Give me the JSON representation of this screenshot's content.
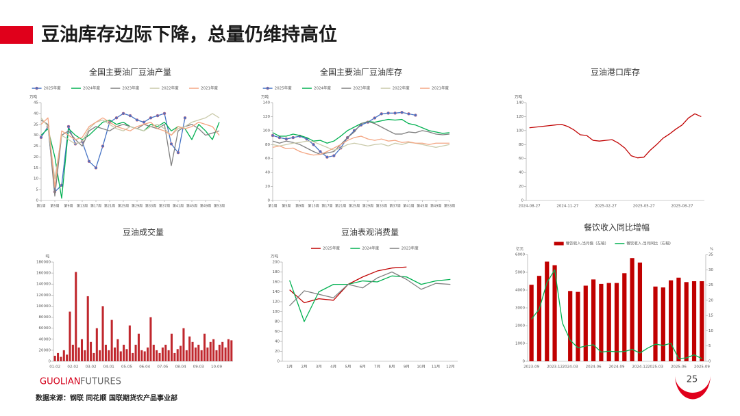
{
  "header": {
    "title": "豆油库存边际下降，总量仍维持高位"
  },
  "footer": {
    "brand": "GUOLIAN",
    "brand2": "FUTURES",
    "source": "数据来源：钢联  同花顺  国联期货农产品事业部",
    "page": 25
  },
  "chart_data": [
    {
      "type": "line",
      "title": "全国主要油厂豆油产量",
      "y_label": "万吨",
      "x": [
        1,
        3,
        5,
        7,
        9,
        11,
        13,
        15,
        17,
        19,
        21,
        23,
        25,
        27,
        29,
        31,
        33,
        35,
        37,
        39,
        41,
        43,
        45,
        47,
        49,
        51,
        53
      ],
      "xlim": [
        1,
        53
      ],
      "xticks": [
        {
          "value": 1,
          "label": "第1周"
        },
        {
          "value": 5,
          "label": "第5周"
        },
        {
          "value": 9,
          "label": "第9周"
        },
        {
          "value": 13,
          "label": "第13周"
        },
        {
          "value": 17,
          "label": "第17周"
        },
        {
          "value": 21,
          "label": "第21周"
        },
        {
          "value": 25,
          "label": "第25周"
        },
        {
          "value": 29,
          "label": "第29周"
        },
        {
          "value": 33,
          "label": "第33周"
        },
        {
          "value": 37,
          "label": "第37周"
        },
        {
          "value": 41,
          "label": "第41周"
        },
        {
          "value": 45,
          "label": "第45周"
        },
        {
          "value": 49,
          "label": "第49周"
        },
        {
          "value": 53,
          "label": "第53周"
        }
      ],
      "ylim": [
        0,
        45
      ],
      "yticks": [
        0,
        5,
        10,
        15,
        20,
        25,
        30,
        35,
        40,
        45
      ],
      "series": [
        {
          "name": "2025年度",
          "color": "#4472c4",
          "marker": true,
          "values": [
            29,
            34,
            4,
            7,
            34,
            26,
            27,
            18,
            15,
            25,
            36,
            38,
            40,
            39,
            37,
            36,
            38,
            39,
            40,
            26,
            22,
            38,
            null,
            null,
            null,
            null,
            null
          ]
        },
        {
          "name": "2024年度",
          "color": "#00b050",
          "values": [
            30,
            33,
            20,
            1,
            33,
            30,
            28,
            30,
            33,
            36,
            37,
            35,
            36,
            34,
            33,
            32,
            35,
            34,
            36,
            32,
            34,
            33,
            28,
            35,
            32,
            28,
            36
          ]
        },
        {
          "name": "2023年度",
          "color": "#7f7f7f",
          "values": [
            37,
            35,
            2,
            30,
            32,
            28,
            25,
            32,
            34,
            33,
            32,
            34,
            35,
            34,
            33,
            35,
            34,
            33,
            35,
            16,
            32,
            34,
            35,
            33,
            30,
            31,
            32
          ]
        },
        {
          "name": "2022年度",
          "color": "#c9c9a9",
          "values": [
            38,
            34,
            10,
            30,
            28,
            26,
            27,
            33,
            36,
            37,
            35,
            33,
            32,
            34,
            33,
            32,
            34,
            35,
            33,
            30,
            33,
            34,
            36,
            37,
            38,
            40,
            38
          ]
        },
        {
          "name": "2021年度",
          "color": "#f4a582",
          "values": [
            35,
            38,
            6,
            32,
            30,
            28,
            29,
            34,
            36,
            38,
            36,
            34,
            33,
            32,
            34,
            35,
            36,
            33,
            32,
            30,
            34,
            33,
            34,
            36,
            35,
            34,
            30
          ]
        }
      ]
    },
    {
      "type": "line",
      "title": "全国主要油厂豆油库存",
      "y_label": "万吨",
      "x": [
        1,
        3,
        5,
        7,
        9,
        11,
        13,
        15,
        17,
        19,
        21,
        23,
        25,
        27,
        29,
        31,
        33,
        35,
        37,
        39,
        41,
        43,
        45,
        47,
        49,
        51,
        53
      ],
      "xlim": [
        1,
        53
      ],
      "xticks": [
        {
          "value": 1,
          "label": "第1周"
        },
        {
          "value": 5,
          "label": "第5周"
        },
        {
          "value": 9,
          "label": "第9周"
        },
        {
          "value": 13,
          "label": "第13周"
        },
        {
          "value": 17,
          "label": "第17周"
        },
        {
          "value": 21,
          "label": "第21周"
        },
        {
          "value": 25,
          "label": "第25周"
        },
        {
          "value": 29,
          "label": "第29周"
        },
        {
          "value": 33,
          "label": "第33周"
        },
        {
          "value": 37,
          "label": "第37周"
        },
        {
          "value": 41,
          "label": "第41周"
        },
        {
          "value": 45,
          "label": "第45周"
        },
        {
          "value": 49,
          "label": "第49周"
        },
        {
          "value": 53,
          "label": "第53周"
        }
      ],
      "ylim": [
        0,
        140
      ],
      "yticks": [
        0,
        20,
        40,
        60,
        80,
        100,
        120,
        140
      ],
      "series": [
        {
          "name": "2025年度",
          "color": "#4472c4",
          "marker": true,
          "values": [
            93,
            90,
            88,
            90,
            92,
            88,
            80,
            70,
            62,
            64,
            75,
            90,
            100,
            108,
            112,
            118,
            124,
            125,
            125,
            126,
            124,
            122,
            null,
            null,
            null,
            null,
            null
          ]
        },
        {
          "name": "2024年度",
          "color": "#00b050",
          "values": [
            97,
            92,
            92,
            95,
            93,
            90,
            85,
            86,
            82,
            85,
            92,
            100,
            105,
            110,
            113,
            112,
            114,
            116,
            115,
            116,
            110,
            108,
            104,
            100,
            98,
            96,
            97
          ]
        },
        {
          "name": "2023年度",
          "color": "#7f7f7f",
          "values": [
            85,
            82,
            85,
            83,
            80,
            75,
            70,
            66,
            68,
            70,
            80,
            90,
            98,
            110,
            113,
            110,
            105,
            100,
            95,
            95,
            98,
            97,
            100,
            98,
            95,
            94,
            95
          ]
        },
        {
          "name": "2022年度",
          "color": "#c9c9a9",
          "values": [
            80,
            78,
            80,
            82,
            83,
            85,
            84,
            80,
            76,
            72,
            75,
            80,
            82,
            80,
            78,
            80,
            81,
            78,
            82,
            80,
            83,
            82,
            80,
            78,
            76,
            78,
            80
          ]
        },
        {
          "name": "2021年度",
          "color": "#f4a582",
          "values": [
            76,
            78,
            74,
            75,
            70,
            67,
            65,
            66,
            70,
            75,
            80,
            86,
            90,
            92,
            88,
            86,
            88,
            85,
            86,
            83,
            84,
            82,
            82,
            80,
            82,
            82,
            82
          ]
        }
      ]
    },
    {
      "type": "line",
      "title": "豆油港口库存",
      "y_label": "万吨",
      "categories": [
        "2024-08-27",
        null,
        null,
        null,
        null,
        null,
        "2024-11-27",
        null,
        null,
        null,
        null,
        null,
        "2025-02-27",
        null,
        null,
        null,
        null,
        null,
        "2025-05-27",
        null,
        null,
        null,
        null,
        null,
        "2025-08-27",
        null,
        null,
        null
      ],
      "ylim": [
        0,
        140
      ],
      "yticks": [
        0,
        20,
        40,
        60,
        80,
        100,
        120,
        140
      ],
      "series": [
        {
          "color": "#c00000",
          "values": [
            104,
            105,
            106,
            107,
            108,
            109,
            106,
            101,
            94,
            93,
            86,
            85,
            86,
            87,
            82,
            75,
            64,
            61,
            62,
            72,
            80,
            89,
            95,
            102,
            108,
            118,
            124,
            120
          ]
        }
      ]
    },
    {
      "type": "bar",
      "title": "豆油成交量",
      "y_label": "吨",
      "color": "#c0272d",
      "categories": [
        "01-02",
        null,
        null,
        null,
        null,
        null,
        "02-02",
        null,
        null,
        null,
        null,
        null,
        "03-02",
        null,
        null,
        null,
        null,
        null,
        "04-01",
        null,
        null,
        null,
        null,
        null,
        "05-05",
        null,
        null,
        null,
        null,
        null,
        "06-04",
        null,
        null,
        null,
        null,
        null,
        "07-05",
        null,
        null,
        null,
        null,
        null,
        "08-04",
        null,
        null,
        null,
        null,
        null,
        "09-03",
        null,
        null,
        null,
        null,
        null,
        "10-09",
        null,
        null,
        null,
        null,
        null
      ],
      "values": [
        10000,
        15000,
        8000,
        20000,
        12000,
        90000,
        30000,
        162000,
        25000,
        40000,
        20000,
        118000,
        35000,
        15000,
        60000,
        20000,
        100000,
        30000,
        20000,
        75000,
        25000,
        40000,
        18000,
        30000,
        22000,
        65000,
        15000,
        30000,
        50000,
        20000,
        18000,
        25000,
        80000,
        30000,
        20000,
        15000,
        25000,
        30000,
        20000,
        50000,
        15000,
        22000,
        28000,
        60000,
        20000,
        45000,
        35000,
        25000,
        30000,
        20000,
        50000,
        25000,
        35000,
        40000,
        20000,
        30000,
        35000,
        25000,
        40000,
        38000
      ],
      "ylim": [
        0,
        180000
      ],
      "yticks": [
        0,
        20000,
        40000,
        60000,
        80000,
        100000,
        120000,
        140000,
        160000,
        180000
      ]
    },
    {
      "type": "line",
      "title": "豆油表观消费量",
      "y_label": "万吨",
      "categories": [
        "1月",
        "2月",
        "3月",
        "4月",
        "5月",
        "6月",
        "7月",
        "8月",
        "9月",
        "10月",
        "11月",
        "12月"
      ],
      "ylim": [
        0,
        200
      ],
      "yticks": [
        0,
        20,
        40,
        60,
        80,
        100,
        120,
        140,
        160,
        180,
        200
      ],
      "series": [
        {
          "name": "2025年度",
          "color": "#c00000",
          "values": [
            144,
            118,
            126,
            123,
            155,
            170,
            182,
            188,
            190,
            null,
            null,
            null
          ]
        },
        {
          "name": "2024年度",
          "color": "#00b050",
          "values": [
            163,
            80,
            140,
            155,
            155,
            162,
            160,
            172,
            170,
            155,
            162,
            165
          ]
        },
        {
          "name": "2023年度",
          "color": "#7f7f7f",
          "values": [
            112,
            142,
            135,
            128,
            155,
            148,
            168,
            180,
            165,
            145,
            157,
            155
          ]
        }
      ]
    },
    {
      "type": "combo",
      "title": "餐饮收入同比增幅",
      "y_label": "亿元",
      "y2_label": "%",
      "categories": [
        "2023-09",
        null,
        null,
        "2023-12",
        null,
        "2024-03",
        null,
        null,
        "2024-06",
        null,
        null,
        "2024-09",
        null,
        null,
        "2024-12",
        null,
        "2025-03",
        null,
        null,
        "2025-06",
        null,
        null,
        "2025-09"
      ],
      "ylim": [
        0,
        6000
      ],
      "yticks": [
        0,
        1000,
        2000,
        3000,
        4000,
        5000,
        6000
      ],
      "y2lim": [
        0,
        35
      ],
      "y2ticks": [
        0,
        5,
        10,
        15,
        20,
        25,
        30,
        35
      ],
      "series": [
        {
          "name": "餐饮收入:当月值（左轴）",
          "color": "#c00000",
          "kind": "bar",
          "values": [
            4300,
            4800,
            5600,
            5400,
            null,
            3950,
            3900,
            4250,
            4600,
            4350,
            4400,
            4400,
            4950,
            5800,
            5550,
            null,
            4200,
            4150,
            4550,
            4700,
            4450,
            4500,
            4500
          ]
        },
        {
          "name": "餐饮收入:当月同比（右轴）",
          "color": "#00b050",
          "kind": "line",
          "axis": "y2",
          "values": [
            13.8,
            17.1,
            25.8,
            30.0,
            12.5,
            6.9,
            4.4,
            5.0,
            5.4,
            3.0,
            3.3,
            3.1,
            3.2,
            3.9,
            2.7,
            4.3,
            5.6,
            5.2,
            5.9,
            0.9,
            1.1,
            2.1,
            0.9
          ]
        }
      ]
    }
  ]
}
